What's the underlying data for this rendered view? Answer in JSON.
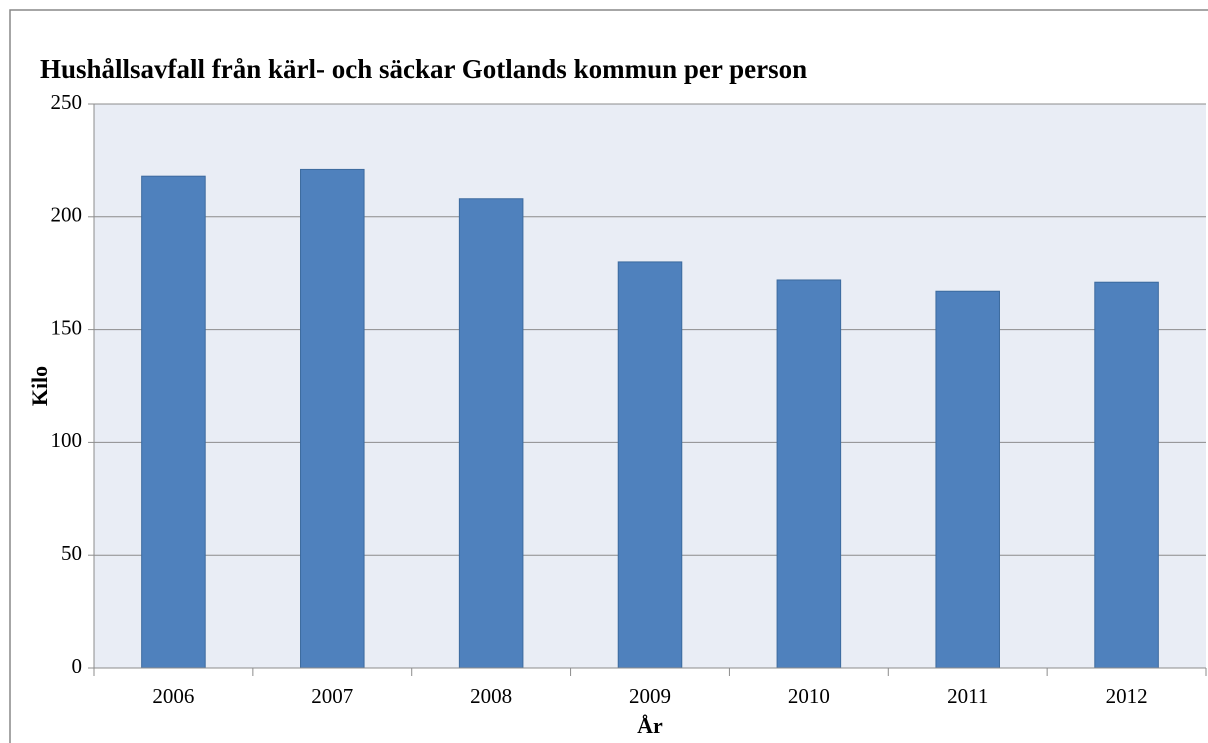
{
  "chart_data": {
    "type": "bar",
    "title": "Hushållsavfall från kärl- och säckar Gotlands kommun per person",
    "x_label": "År",
    "y_label": "Kilo",
    "categories": [
      "2006",
      "2007",
      "2008",
      "2009",
      "2010",
      "2011",
      "2012"
    ],
    "values": [
      218,
      221,
      208,
      180,
      172,
      167,
      171
    ],
    "color": "#4f81bd",
    "ylim": [
      0,
      250
    ],
    "yticks": [
      0,
      50,
      100,
      150,
      200,
      250
    ],
    "grid": true
  }
}
